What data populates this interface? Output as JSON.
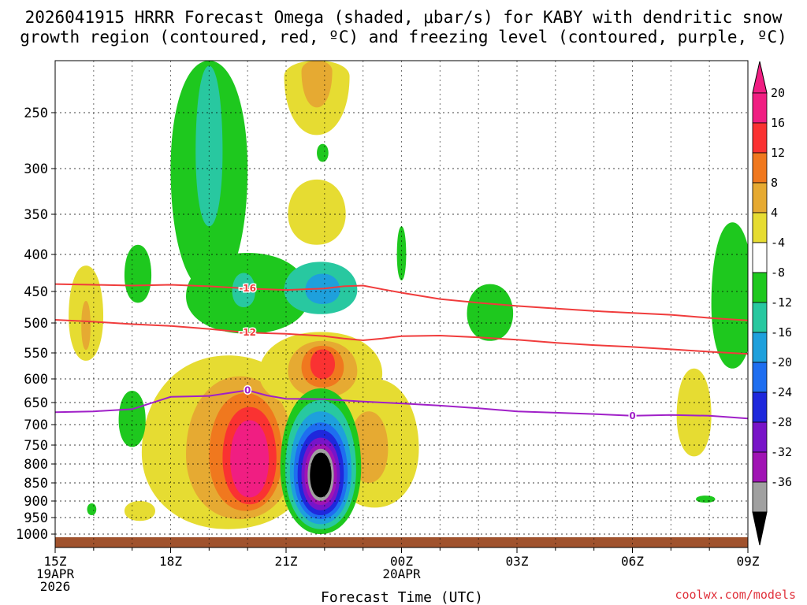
{
  "chart_data": {
    "type": "heatmap",
    "title_lines": [
      "2026041915 HRRR Forecast Omega (shaded, μbar/s) for KABY with dendritic snow",
      "growth region (contoured, red, ºC) and freezing level (contoured, purple, ºC)"
    ],
    "xlabel": "Forecast Time (UTC)",
    "credit": "coolwx.com/models",
    "x_ticks": [
      {
        "hour": 0,
        "lines": [
          "15Z",
          "19APR",
          "2026"
        ]
      },
      {
        "hour": 3,
        "lines": [
          "18Z"
        ]
      },
      {
        "hour": 6,
        "lines": [
          "21Z"
        ]
      },
      {
        "hour": 9,
        "lines": [
          "00Z",
          "20APR"
        ]
      },
      {
        "hour": 12,
        "lines": [
          "03Z"
        ]
      },
      {
        "hour": 15,
        "lines": [
          "06Z"
        ]
      },
      {
        "hour": 18,
        "lines": [
          "09Z"
        ]
      }
    ],
    "xlim": [
      0,
      18
    ],
    "pressure_ticks": [
      250,
      300,
      350,
      400,
      450,
      500,
      550,
      600,
      650,
      700,
      750,
      800,
      850,
      900,
      950,
      1000
    ],
    "ylim": [
      200,
      1025
    ],
    "colorbar": {
      "labels": [
        "20",
        "16",
        "12",
        "8",
        "4",
        "-4",
        "-8",
        "-12",
        "-16",
        "-20",
        "-24",
        "-28",
        "-32",
        "-36"
      ],
      "colors": [
        "#f01e82",
        "#fa3232",
        "#f0781e",
        "#e6aa32",
        "#e6dc32",
        "#ffffff",
        "#1ec81e",
        "#28c8a0",
        "#1ea0dc",
        "#1e6ef0",
        "#1e28dc",
        "#7814c8",
        "#a014b4",
        "#a0a0a0"
      ],
      "top_color": "#f01e82",
      "bottom_color": "#000000"
    },
    "omega_regions": [
      {
        "name": "upper-plume-1",
        "levels": [
          {
            "value": 4,
            "hour": 6.8,
            "p": 215,
            "hw": 0.85,
            "hp": 55
          },
          {
            "value": 8,
            "hour": 6.8,
            "p": 210,
            "hw": 0.4,
            "hp": 35
          }
        ]
      },
      {
        "name": "upper-plume-2",
        "levels": [
          {
            "value": 4,
            "hour": 6.8,
            "p": 350,
            "hw": 0.75,
            "hp": 38
          }
        ]
      },
      {
        "name": "lower-updraft-west",
        "levels": [
          {
            "value": 4,
            "hour": 4.5,
            "p": 770,
            "hw": 2.25,
            "hp": 215
          },
          {
            "value": 8,
            "hour": 4.8,
            "p": 775,
            "hw": 1.4,
            "hp": 180
          },
          {
            "value": 12,
            "hour": 4.95,
            "p": 780,
            "hw": 0.95,
            "hp": 150
          },
          {
            "value": 16,
            "hour": 5.05,
            "p": 785,
            "hw": 0.7,
            "hp": 125
          },
          {
            "value": 20,
            "hour": 5.05,
            "p": 790,
            "hw": 0.5,
            "hp": 100
          }
        ]
      },
      {
        "name": "mid-updraft",
        "levels": [
          {
            "value": 4,
            "hour": 6.9,
            "p": 590,
            "hw": 1.6,
            "hp": 75
          },
          {
            "value": 8,
            "hour": 6.95,
            "p": 585,
            "hw": 0.9,
            "hp": 55
          },
          {
            "value": 12,
            "hour": 6.95,
            "p": 578,
            "hw": 0.55,
            "hp": 40
          },
          {
            "value": 16,
            "hour": 6.95,
            "p": 572,
            "hw": 0.32,
            "hp": 28
          }
        ]
      },
      {
        "name": "lower-updraft-east",
        "levels": [
          {
            "value": 4,
            "hour": 8.3,
            "p": 760,
            "hw": 1.15,
            "hp": 160
          },
          {
            "value": 8,
            "hour": 8.15,
            "p": 760,
            "hw": 0.5,
            "hp": 90
          }
        ]
      },
      {
        "name": "updraft-east-small",
        "levels": [
          {
            "value": 4,
            "hour": 16.6,
            "p": 680,
            "hw": 0.45,
            "hp": 100
          }
        ]
      },
      {
        "name": "updraft-west-edge",
        "levels": [
          {
            "value": 4,
            "hour": 0.8,
            "p": 490,
            "hw": 0.45,
            "hp": 75
          },
          {
            "value": 8,
            "hour": 0.8,
            "p": 505,
            "hw": 0.12,
            "hp": 40
          }
        ]
      },
      {
        "name": "updraft-sw-small",
        "levels": [
          {
            "value": 4,
            "hour": 2.2,
            "p": 930,
            "hw": 0.4,
            "hp": 30
          }
        ]
      },
      {
        "name": "downdraft-upper-west",
        "levels": [
          {
            "value": -4,
            "hour": 4.0,
            "p": 300,
            "hw": 1.0,
            "hp": 150
          },
          {
            "value": -8,
            "hour": 4.0,
            "p": 285,
            "hw": 0.35,
            "hp": 80
          }
        ]
      },
      {
        "name": "downdraft-mid",
        "levels": [
          {
            "value": -4,
            "hour": 5.0,
            "p": 458,
            "hw": 1.6,
            "hp": 60
          },
          {
            "value": -8,
            "hour": 6.9,
            "p": 448,
            "hw": 0.95,
            "hp": 38
          },
          {
            "value": -12,
            "hour": 6.95,
            "p": 448,
            "hw": 0.45,
            "hp": 22
          }
        ]
      },
      {
        "name": "downdraft-mid-left",
        "levels": [
          {
            "value": -8,
            "hour": 4.9,
            "p": 450,
            "hw": 0.3,
            "hp": 25
          }
        ]
      },
      {
        "name": "downdraft-left-small",
        "levels": [
          {
            "value": -4,
            "hour": 2.15,
            "p": 428,
            "hw": 0.35,
            "hp": 40
          }
        ]
      },
      {
        "name": "downdraft-mid-right",
        "levels": [
          {
            "value": -4,
            "hour": 11.3,
            "p": 485,
            "hw": 0.6,
            "hp": 45
          }
        ]
      },
      {
        "name": "downdraft-east-edge",
        "levels": [
          {
            "value": -4,
            "hour": 17.6,
            "p": 470,
            "hw": 0.55,
            "hp": 110
          }
        ]
      },
      {
        "name": "downdraft-thin",
        "levels": [
          {
            "value": -4,
            "hour": 9.0,
            "p": 400,
            "hw": 0.12,
            "hp": 35
          }
        ]
      },
      {
        "name": "downdraft-low-west",
        "levels": [
          {
            "value": -4,
            "hour": 2.0,
            "p": 690,
            "hw": 0.35,
            "hp": 65
          }
        ]
      },
      {
        "name": "downdraft-lowest-west",
        "levels": [
          {
            "value": -4,
            "hour": 0.95,
            "p": 925,
            "hw": 0.12,
            "hp": 18
          }
        ]
      },
      {
        "name": "downdraft-low-east",
        "levels": [
          {
            "value": -4,
            "hour": 16.9,
            "p": 895,
            "hw": 0.25,
            "hp": 10
          }
        ]
      },
      {
        "name": "downdraft-tiny-top",
        "levels": [
          {
            "value": -4,
            "hour": 6.95,
            "p": 286,
            "hw": 0.15,
            "hp": 8
          }
        ]
      },
      {
        "name": "strong-downdraft",
        "levels": [
          {
            "value": -4,
            "hour": 6.9,
            "p": 810,
            "hw": 1.05,
            "hp": 190
          },
          {
            "value": -8,
            "hour": 6.9,
            "p": 815,
            "hw": 0.92,
            "hp": 170
          },
          {
            "value": -12,
            "hour": 6.9,
            "p": 820,
            "hw": 0.8,
            "hp": 150
          },
          {
            "value": -16,
            "hour": 6.9,
            "p": 825,
            "hw": 0.7,
            "hp": 130
          },
          {
            "value": -20,
            "hour": 6.9,
            "p": 828,
            "hw": 0.6,
            "hp": 115
          },
          {
            "value": -24,
            "hour": 6.9,
            "p": 830,
            "hw": 0.5,
            "hp": 98
          },
          {
            "value": -28,
            "hour": 6.9,
            "p": 830,
            "hw": 0.42,
            "hp": 82
          },
          {
            "value": -32,
            "hour": 6.9,
            "p": 830,
            "hw": 0.34,
            "hp": 70
          },
          {
            "value": -36,
            "hour": 6.9,
            "p": 830,
            "hw": 0.28,
            "hp": 60
          }
        ]
      }
    ],
    "temperature_contours": [
      {
        "label": "-16",
        "color": "#f03c3c",
        "label_at_hour": 5.0,
        "points": [
          [
            0,
            440
          ],
          [
            1,
            441
          ],
          [
            2,
            442
          ],
          [
            3,
            441
          ],
          [
            4,
            443
          ],
          [
            5,
            446
          ],
          [
            6,
            448
          ],
          [
            7,
            446
          ],
          [
            7.5,
            443
          ],
          [
            8,
            442
          ],
          [
            8.5,
            447
          ],
          [
            9,
            452
          ],
          [
            10,
            462
          ],
          [
            11,
            468
          ],
          [
            12,
            473
          ],
          [
            13,
            477
          ],
          [
            14,
            481
          ],
          [
            15,
            484
          ],
          [
            16,
            487
          ],
          [
            17,
            492
          ],
          [
            18,
            496
          ]
        ]
      },
      {
        "label": "-12",
        "color": "#f03c3c",
        "label_at_hour": 5.0,
        "points": [
          [
            0,
            495
          ],
          [
            1,
            498
          ],
          [
            2,
            502
          ],
          [
            3,
            505
          ],
          [
            4,
            510
          ],
          [
            5,
            516
          ],
          [
            6,
            518
          ],
          [
            7,
            522
          ],
          [
            7.5,
            526
          ],
          [
            8,
            529
          ],
          [
            8.5,
            526
          ],
          [
            9,
            522
          ],
          [
            10,
            521
          ],
          [
            11,
            524
          ],
          [
            12,
            528
          ],
          [
            13,
            533
          ],
          [
            14,
            537
          ],
          [
            15,
            540
          ],
          [
            16,
            544
          ],
          [
            17,
            548
          ],
          [
            18,
            552
          ]
        ]
      },
      {
        "label": "0",
        "color": "#a020c8",
        "label_at_hour": 5.0,
        "label2_at_hour": 15.0,
        "points": [
          [
            0,
            672
          ],
          [
            1,
            670
          ],
          [
            2,
            665
          ],
          [
            3,
            638
          ],
          [
            4,
            636
          ],
          [
            5,
            624
          ],
          [
            5.5,
            635
          ],
          [
            6,
            642
          ],
          [
            7,
            643
          ],
          [
            8,
            648
          ],
          [
            9,
            652
          ],
          [
            10,
            657
          ],
          [
            11,
            663
          ],
          [
            12,
            670
          ],
          [
            13,
            673
          ],
          [
            14,
            676
          ],
          [
            15,
            680
          ],
          [
            16,
            678
          ],
          [
            17,
            680
          ],
          [
            18,
            686
          ]
        ]
      }
    ],
    "surface_color": "#a0522d"
  }
}
